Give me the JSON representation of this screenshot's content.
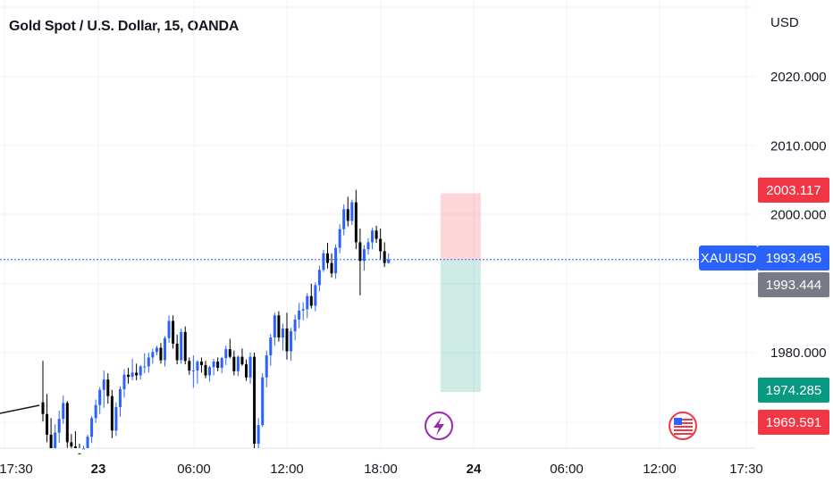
{
  "header": {
    "title": "Gold Spot / U.S. Dollar, 15, OANDA"
  },
  "chart_data": {
    "type": "candlestick",
    "symbol": "XAUUSD",
    "currency_label": "USD",
    "y_ticks": [
      "2020.000",
      "2010.000",
      "2000.000",
      "1980.000"
    ],
    "y_tick_values": [
      2020,
      2010,
      2000,
      1980
    ],
    "x_ticks": [
      {
        "label": "17:30",
        "bold": false
      },
      {
        "label": "23",
        "bold": true
      },
      {
        "label": "06:00",
        "bold": false
      },
      {
        "label": "12:00",
        "bold": false
      },
      {
        "label": "18:00",
        "bold": false
      },
      {
        "label": "24",
        "bold": true
      },
      {
        "label": "06:00",
        "bold": false
      },
      {
        "label": "12:00",
        "bold": false
      },
      {
        "label": "17:30",
        "bold": false
      }
    ],
    "price_badges": [
      {
        "label": "2003.117",
        "value": 2003.117,
        "color": "#f23645"
      },
      {
        "label": "1993.495",
        "value": 1993.495,
        "color": "#2962ff",
        "symbol": "XAUUSD"
      },
      {
        "label": "1993.444",
        "value": 1993.444,
        "color": "#787b86"
      },
      {
        "label": "1974.285",
        "value": 1974.285,
        "color": "#089981"
      },
      {
        "label": "1969.591",
        "value": 1969.591,
        "color": "#f23645"
      }
    ],
    "position_tool": {
      "type": "short",
      "entry": 1993.444,
      "stop": 2003.117,
      "target": 1974.285,
      "risk_color": "#f23645",
      "reward_color": "#089981"
    },
    "colors": {
      "up": "#2962ff",
      "down": "#000000",
      "grid": "#f0f3fa",
      "last_price_line": "#2962ff"
    },
    "events": [
      {
        "icon": "lightning-icon",
        "color": "#9c27b0"
      },
      {
        "icon": "us-flag-icon",
        "color": "#f23645"
      }
    ],
    "candles_approx": [
      [
        1972.8,
        1978.8,
        1970.0,
        1971.1
      ],
      [
        1971.1,
        1974.0,
        1967.0,
        1968.1
      ],
      [
        1968.1,
        1970.5,
        1964.1,
        1965.1
      ],
      [
        1965.1,
        1969.6,
        1962.8,
        1968.4
      ],
      [
        1968.4,
        1971.6,
        1966.9,
        1970.4
      ],
      [
        1970.4,
        1973.8,
        1969.7,
        1972.7
      ],
      [
        1972.7,
        1973.0,
        1966.2,
        1967.0
      ],
      [
        1967.0,
        1968.2,
        1965.1,
        1966.4
      ],
      [
        1966.4,
        1968.6,
        1964.5,
        1965.4
      ],
      [
        1965.4,
        1966.8,
        1962.6,
        1963.8
      ],
      [
        1963.8,
        1966.5,
        1960.9,
        1966.1
      ],
      [
        1966.1,
        1968.1,
        1964.4,
        1967.8
      ],
      [
        1967.8,
        1970.8,
        1966.9,
        1970.5
      ],
      [
        1970.5,
        1973.2,
        1969.8,
        1972.4
      ],
      [
        1972.4,
        1975.0,
        1971.1,
        1974.6
      ],
      [
        1974.6,
        1977.4,
        1972.0,
        1976.1
      ],
      [
        1976.1,
        1977.0,
        1972.6,
        1973.7
      ],
      [
        1973.7,
        1974.6,
        1967.6,
        1968.7
      ],
      [
        1968.7,
        1972.8,
        1967.9,
        1972.1
      ],
      [
        1972.1,
        1975.1,
        1970.7,
        1974.7
      ],
      [
        1974.7,
        1977.6,
        1973.5,
        1976.8
      ],
      [
        1976.8,
        1977.8,
        1975.5,
        1976.5
      ],
      [
        1976.5,
        1979.1,
        1976.0,
        1977.1
      ],
      [
        1977.1,
        1978.4,
        1976.0,
        1976.7
      ],
      [
        1976.7,
        1978.2,
        1976.1,
        1978.0
      ],
      [
        1978.0,
        1979.9,
        1977.0,
        1978.0
      ],
      [
        1978.0,
        1980.0,
        1977.1,
        1979.3
      ],
      [
        1979.3,
        1980.6,
        1978.4,
        1980.1
      ],
      [
        1980.1,
        1981.0,
        1979.6,
        1980.7
      ],
      [
        1980.7,
        1981.4,
        1978.4,
        1978.9
      ],
      [
        1978.9,
        1982.4,
        1978.0,
        1982.1
      ],
      [
        1982.1,
        1985.4,
        1981.4,
        1984.6
      ],
      [
        1984.6,
        1985.4,
        1980.6,
        1981.3
      ],
      [
        1981.3,
        1982.6,
        1978.3,
        1978.9
      ],
      [
        1978.9,
        1983.5,
        1978.4,
        1983.0
      ],
      [
        1983.0,
        1983.8,
        1978.3,
        1978.8
      ],
      [
        1978.8,
        1979.3,
        1976.8,
        1977.4
      ],
      [
        1977.4,
        1979.6,
        1974.9,
        1977.4
      ],
      [
        1977.4,
        1978.9,
        1975.5,
        1978.7
      ],
      [
        1978.7,
        1979.3,
        1977.1,
        1978.2
      ],
      [
        1978.2,
        1978.8,
        1976.3,
        1976.7
      ],
      [
        1976.7,
        1978.1,
        1975.8,
        1977.9
      ],
      [
        1977.9,
        1979.1,
        1976.7,
        1978.7
      ],
      [
        1978.7,
        1979.3,
        1977.3,
        1977.8
      ],
      [
        1977.8,
        1979.4,
        1977.0,
        1979.2
      ],
      [
        1979.2,
        1981.0,
        1978.2,
        1980.5
      ],
      [
        1980.5,
        1982.0,
        1979.2,
        1979.4
      ],
      [
        1979.4,
        1980.3,
        1976.7,
        1977.3
      ],
      [
        1977.3,
        1979.6,
        1976.6,
        1979.4
      ],
      [
        1979.4,
        1980.6,
        1978.1,
        1978.3
      ],
      [
        1978.3,
        1979.0,
        1975.9,
        1976.4
      ],
      [
        1976.4,
        1980.0,
        1975.5,
        1979.4
      ],
      [
        1979.4,
        1980.0,
        1965.0,
        1966.8
      ],
      [
        1966.8,
        1970.5,
        1962.0,
        1969.5
      ],
      [
        1969.5,
        1977.0,
        1969.2,
        1976.4
      ],
      [
        1976.4,
        1980.3,
        1975.0,
        1979.6
      ],
      [
        1979.6,
        1982.7,
        1978.1,
        1982.2
      ],
      [
        1982.2,
        1985.8,
        1981.0,
        1985.4
      ],
      [
        1985.4,
        1986.0,
        1981.6,
        1982.2
      ],
      [
        1982.2,
        1984.2,
        1980.3,
        1983.5
      ],
      [
        1983.5,
        1985.8,
        1979.0,
        1980.2
      ],
      [
        1980.2,
        1983.6,
        1978.8,
        1983.1
      ],
      [
        1983.1,
        1985.5,
        1981.8,
        1984.8
      ],
      [
        1984.8,
        1987.2,
        1983.6,
        1986.1
      ],
      [
        1986.1,
        1987.3,
        1984.7,
        1986.3
      ],
      [
        1986.3,
        1988.6,
        1985.0,
        1988.2
      ],
      [
        1988.2,
        1990.0,
        1986.4,
        1986.8
      ],
      [
        1986.8,
        1990.2,
        1986.0,
        1989.8
      ],
      [
        1989.8,
        1992.6,
        1988.9,
        1992.0
      ],
      [
        1992.0,
        1994.9,
        1991.7,
        1994.4
      ],
      [
        1994.4,
        1995.9,
        1992.2,
        1993.0
      ],
      [
        1993.0,
        1994.4,
        1990.9,
        1991.5
      ],
      [
        1991.5,
        1995.7,
        1990.7,
        1995.2
      ],
      [
        1995.2,
        1998.6,
        1994.4,
        1997.9
      ],
      [
        1997.9,
        2001.5,
        1997.0,
        2000.8
      ],
      [
        2000.8,
        2002.6,
        1998.3,
        1999.1
      ],
      [
        1999.1,
        2002.2,
        1998.5,
        2001.8
      ],
      [
        2001.8,
        2003.6,
        1995.0,
        1996.0
      ],
      [
        1996.0,
        1998.0,
        1988.3,
        1993.3
      ],
      [
        1993.3,
        1995.6,
        1991.9,
        1995.0
      ],
      [
        1995.0,
        1996.6,
        1994.2,
        1996.0
      ],
      [
        1996.0,
        1998.1,
        1995.0,
        1997.7
      ],
      [
        1997.7,
        1998.4,
        1995.9,
        1996.5
      ],
      [
        1996.5,
        1998.0,
        1993.5,
        1994.7
      ],
      [
        1994.7,
        1996.0,
        1992.4,
        1993.0
      ],
      [
        1993.0,
        1994.4,
        1992.9,
        1993.5
      ]
    ]
  }
}
